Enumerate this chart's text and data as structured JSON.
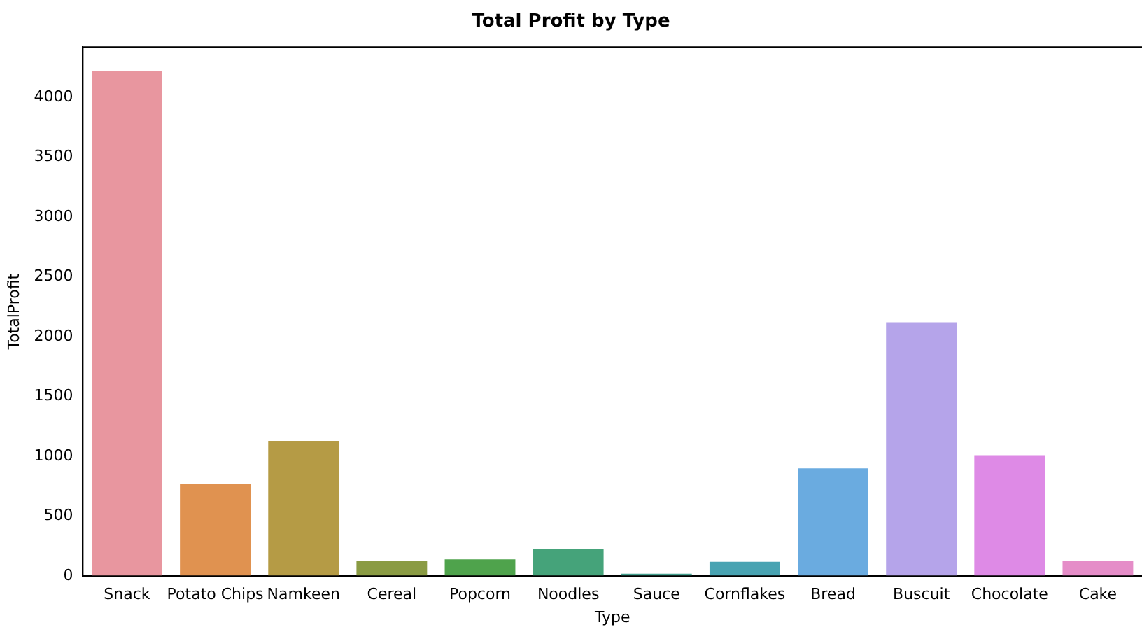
{
  "chart_data": {
    "type": "bar",
    "title": "Total Profit by Type",
    "xlabel": "Type",
    "ylabel": "TotalProfit",
    "categories": [
      "Snack",
      "Potato Chips",
      "Namkeen",
      "Cereal",
      "Popcorn",
      "Noodles",
      "Sauce",
      "Cornflakes",
      "Bread",
      "Buscuit",
      "Chocolate",
      "Cake"
    ],
    "values": [
      4220,
      770,
      1130,
      130,
      140,
      225,
      20,
      120,
      900,
      2120,
      1010,
      130
    ],
    "colors": [
      "#e8969f",
      "#e09250",
      "#b59b45",
      "#8a9b43",
      "#4fa34c",
      "#45a37a",
      "#45a08f",
      "#48a3b2",
      "#6aabe0",
      "#b5a4ea",
      "#de8ae6",
      "#e58dc8"
    ],
    "ylim": [
      0,
      4420
    ],
    "yticks": [
      0,
      500,
      1000,
      1500,
      2000,
      2500,
      3000,
      3500,
      4000
    ],
    "grid": false,
    "legend": false
  }
}
